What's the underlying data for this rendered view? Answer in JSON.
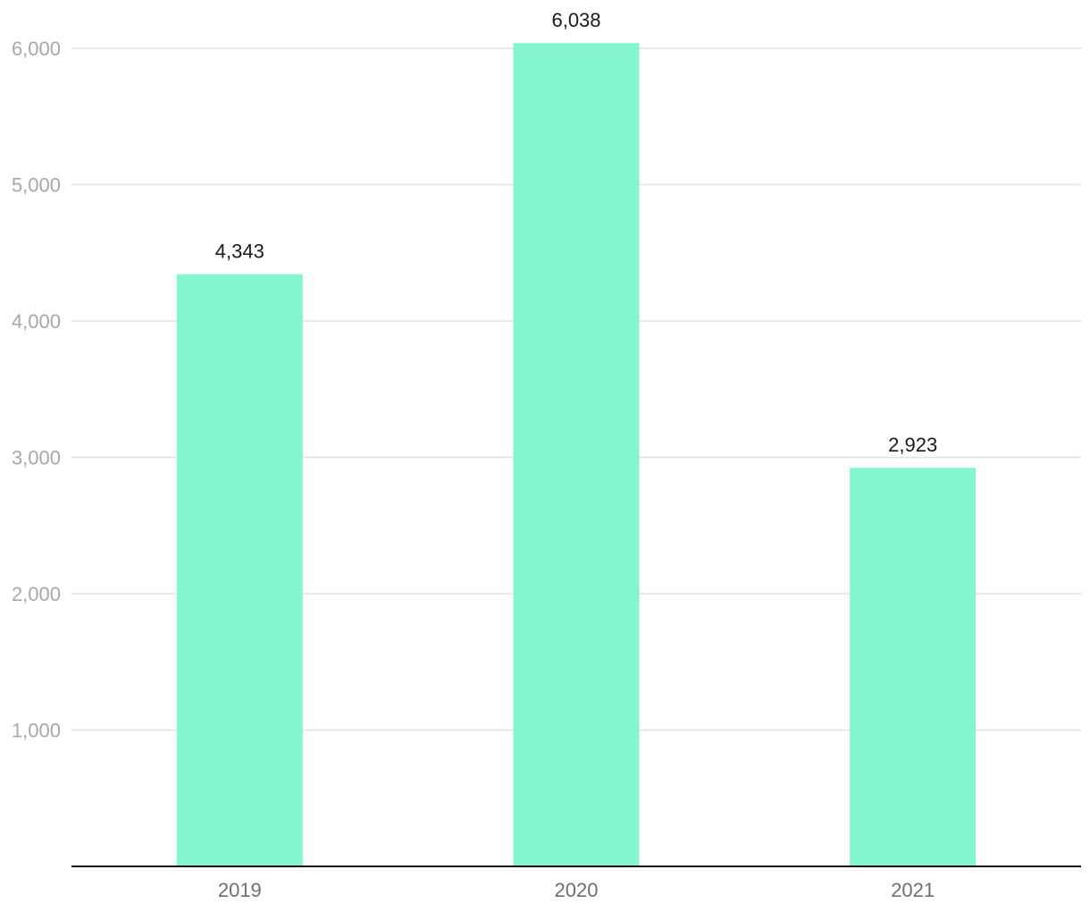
{
  "chart_data": {
    "type": "bar",
    "categories": [
      "2019",
      "2020",
      "2021"
    ],
    "values": [
      4343,
      6038,
      2923
    ],
    "data_labels": [
      "4,343",
      "6,038",
      "2,923"
    ],
    "y_ticks": [
      1000,
      2000,
      3000,
      4000,
      5000,
      6000
    ],
    "y_tick_labels": [
      "1,000",
      "2,000",
      "3,000",
      "4,000",
      "5,000",
      "6,000"
    ],
    "ylim": [
      0,
      6000
    ],
    "grid": true,
    "legend": "none",
    "colors": {
      "bar": "#85f5ce",
      "grid": "#e2e2e2",
      "axis": "#111111"
    }
  }
}
